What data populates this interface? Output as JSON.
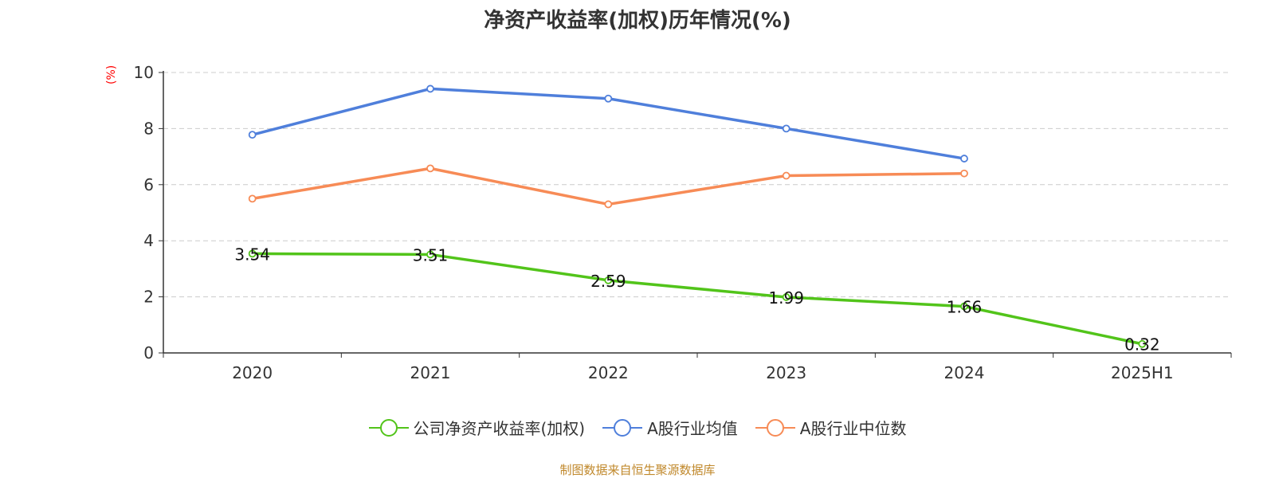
{
  "chart_data": {
    "type": "line",
    "title": "净资产收益率(加权)历年情况(%)",
    "ylabel": "(%)",
    "xlabel": "",
    "categories": [
      "2020",
      "2021",
      "2022",
      "2023",
      "2024",
      "2025H1"
    ],
    "ylim": [
      0,
      10
    ],
    "yticks": [
      0,
      2,
      4,
      6,
      8,
      10
    ],
    "grid": true,
    "legend_position": "bottom",
    "series": [
      {
        "name": "公司净资产收益率(加权)",
        "color": "#52c41a",
        "values": [
          3.54,
          3.51,
          2.59,
          1.99,
          1.66,
          0.32
        ],
        "labels": [
          "3.54",
          "3.51",
          "2.59",
          "1.99",
          "1.66",
          "0.32"
        ]
      },
      {
        "name": "A股行业均值",
        "color": "#4f7fdb",
        "values": [
          7.78,
          9.42,
          9.07,
          8.0,
          6.93,
          null
        ]
      },
      {
        "name": "A股行业中位数",
        "color": "#f78b56",
        "values": [
          5.5,
          6.58,
          5.3,
          6.32,
          6.4,
          null
        ]
      }
    ]
  },
  "footer": {
    "source": "制图数据来自恒生聚源数据库"
  }
}
